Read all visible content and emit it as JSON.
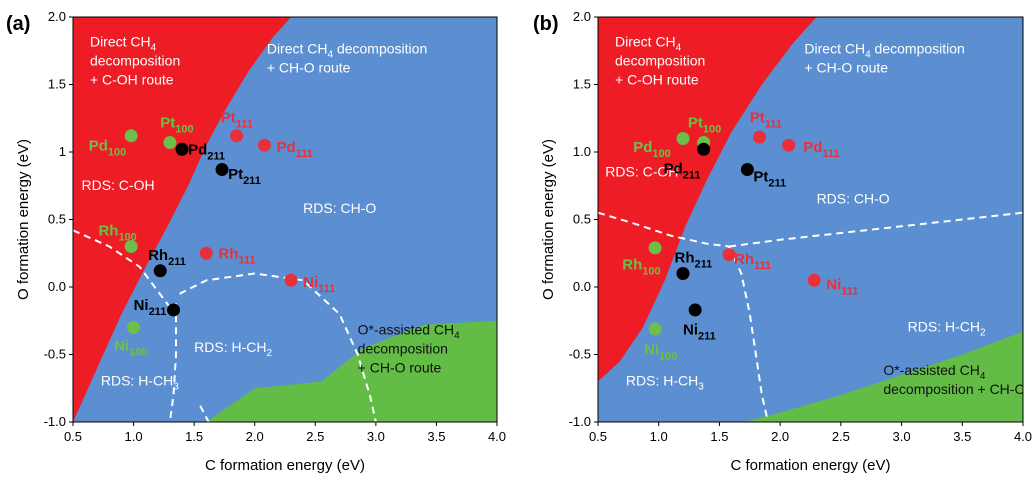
{
  "colors": {
    "blue": "#5B8FD1",
    "red": "#EE1C24",
    "green": "#62BC45",
    "dash": "#ffffff",
    "pt_black": "#000000",
    "pt_red": "#E8303A",
    "pt_green": "#6CBF4A",
    "lbl_green": "#6CBF4A",
    "lbl_red": "#E8303A",
    "lbl_black": "#000000"
  },
  "chart_data": [
    {
      "type": "scatter",
      "panel": "(a)",
      "xlabel": "C formation energy (eV)",
      "ylabel": "O formation energy (eV)",
      "xlim": [
        0.5,
        4.0
      ],
      "ylim": [
        -1.0,
        2.0
      ],
      "xticks": [
        "0.5",
        "1.0",
        "1.5",
        "2.0",
        "2.5",
        "3.0",
        "3.5",
        "4.0"
      ],
      "yticks": [
        "-1.0",
        "-0.5",
        "0.0",
        "0.5",
        "1",
        "1.5",
        "2.0"
      ],
      "regions": [
        {
          "name": "red",
          "color": "red",
          "points": [
            [
              0.5,
              -1.0
            ],
            [
              0.5,
              2.0
            ],
            [
              2.3,
              2.0
            ],
            [
              2.15,
              1.85
            ],
            [
              1.95,
              1.6
            ],
            [
              1.75,
              1.3
            ],
            [
              1.6,
              1.05
            ],
            [
              1.45,
              0.75
            ],
            [
              1.28,
              0.45
            ],
            [
              1.1,
              0.15
            ],
            [
              0.9,
              -0.2
            ],
            [
              0.7,
              -0.6
            ],
            [
              0.5,
              -1.0
            ]
          ]
        },
        {
          "name": "green",
          "color": "green",
          "points": [
            [
              1.6,
              -1.0
            ],
            [
              4.0,
              -1.0
            ],
            [
              4.0,
              -0.25
            ],
            [
              3.4,
              -0.28
            ],
            [
              2.9,
              -0.45
            ],
            [
              2.55,
              -0.7
            ],
            [
              2.0,
              -0.75
            ],
            [
              1.6,
              -1.0
            ]
          ]
        }
      ],
      "boundaries": [
        [
          [
            0.5,
            0.42
          ],
          [
            0.8,
            0.3
          ],
          [
            1.05,
            0.15
          ],
          [
            1.3,
            -0.15
          ]
        ],
        [
          [
            1.35,
            -0.12
          ],
          [
            1.35,
            -0.5
          ],
          [
            1.33,
            -0.8
          ],
          [
            1.3,
            -1.0
          ]
        ],
        [
          [
            1.38,
            -0.05
          ],
          [
            1.6,
            0.05
          ],
          [
            2.0,
            0.1
          ],
          [
            2.4,
            0.05
          ],
          [
            2.7,
            -0.2
          ],
          [
            2.85,
            -0.5
          ],
          [
            2.95,
            -0.8
          ],
          [
            3.0,
            -1.0
          ]
        ],
        [
          [
            1.55,
            -0.88
          ],
          [
            1.62,
            -1.0
          ]
        ]
      ],
      "region_labels": [
        {
          "lines": [
            [
              "Direct CH",
              "4",
              ""
            ],
            [
              "decomposition",
              "",
              ""
            ],
            [
              "+ C-OH route",
              "",
              ""
            ]
          ],
          "x": 0.64,
          "y": 1.78,
          "color": "white"
        },
        {
          "lines": [
            [
              "Direct CH",
              "4",
              " decomposition"
            ],
            [
              "+ CH-O route",
              "",
              ""
            ]
          ],
          "x": 2.1,
          "y": 1.73,
          "color": "white"
        },
        {
          "lines": [
            [
              "RDS: C-OH",
              "",
              ""
            ]
          ],
          "x": 0.57,
          "y": 0.72,
          "color": "white"
        },
        {
          "lines": [
            [
              "RDS: CH-O",
              "",
              ""
            ]
          ],
          "x": 2.4,
          "y": 0.55,
          "color": "white"
        },
        {
          "lines": [
            [
              "RDS: H-CH",
              "2",
              ""
            ]
          ],
          "x": 1.5,
          "y": -0.48,
          "color": "white"
        },
        {
          "lines": [
            [
              "RDS: H-CH",
              "3",
              ""
            ]
          ],
          "x": 0.73,
          "y": -0.73,
          "color": "white"
        },
        {
          "lines": [
            [
              "O*-assisted CH",
              "4",
              ""
            ],
            [
              "decomposition",
              "",
              ""
            ],
            [
              "+ CH-O route",
              "",
              ""
            ]
          ],
          "x": 2.85,
          "y": -0.35,
          "color": "dark"
        }
      ],
      "points": [
        {
          "label": "Pd",
          "sub": "100",
          "color": "green",
          "x": 0.98,
          "y": 1.12,
          "lx": 0.63,
          "ly": 1.01
        },
        {
          "label": "Pt",
          "sub": "100",
          "color": "green",
          "x": 1.3,
          "y": 1.07,
          "lx": 1.22,
          "ly": 1.18
        },
        {
          "label": "Pd",
          "sub": "211",
          "color": "black",
          "x": 1.4,
          "y": 1.02,
          "lx": 1.45,
          "ly": 0.98
        },
        {
          "label": "Pt",
          "sub": "211",
          "color": "black",
          "x": 1.73,
          "y": 0.87,
          "lx": 1.78,
          "ly": 0.8
        },
        {
          "label": "Pt",
          "sub": "111",
          "color": "red",
          "x": 1.85,
          "y": 1.12,
          "lx": 1.72,
          "ly": 1.22
        },
        {
          "label": "Pd",
          "sub": "111",
          "color": "red",
          "x": 2.08,
          "y": 1.05,
          "lx": 2.18,
          "ly": 1.0
        },
        {
          "label": "Rh",
          "sub": "100",
          "color": "green",
          "x": 0.98,
          "y": 0.3,
          "lx": 0.71,
          "ly": 0.38
        },
        {
          "label": "Rh",
          "sub": "211",
          "color": "black",
          "x": 1.22,
          "y": 0.12,
          "lx": 1.12,
          "ly": 0.2
        },
        {
          "label": "Rh",
          "sub": "111",
          "color": "red",
          "x": 1.6,
          "y": 0.25,
          "lx": 1.7,
          "ly": 0.21
        },
        {
          "label": "Ni",
          "sub": "111",
          "color": "red",
          "x": 2.3,
          "y": 0.05,
          "lx": 2.4,
          "ly": 0.0
        },
        {
          "label": "Ni",
          "sub": "211",
          "color": "black",
          "x": 1.33,
          "y": -0.17,
          "lx": 1.0,
          "ly": -0.17
        },
        {
          "label": "Ni",
          "sub": "100",
          "color": "green",
          "x": 1.0,
          "y": -0.3,
          "lx": 0.84,
          "ly": -0.47
        }
      ]
    },
    {
      "type": "scatter",
      "panel": "(b)",
      "xlabel": "C formation energy (eV)",
      "ylabel": "O formation energy (eV)",
      "xlim": [
        0.5,
        4.0
      ],
      "ylim": [
        -1.0,
        2.0
      ],
      "xticks": [
        "0.5",
        "1.0",
        "1.5",
        "2.0",
        "2.5",
        "3.0",
        "3.5",
        "4.0"
      ],
      "yticks": [
        "-1.0",
        "-0.5",
        "0.0",
        "0.5",
        "1.0",
        "1.5",
        "2.0"
      ],
      "regions": [
        {
          "name": "red",
          "color": "red",
          "points": [
            [
              0.5,
              -0.7
            ],
            [
              0.5,
              2.0
            ],
            [
              2.3,
              2.0
            ],
            [
              2.1,
              1.8
            ],
            [
              1.85,
              1.5
            ],
            [
              1.6,
              1.15
            ],
            [
              1.4,
              0.8
            ],
            [
              1.22,
              0.45
            ],
            [
              1.05,
              0.05
            ],
            [
              0.87,
              -0.3
            ],
            [
              0.68,
              -0.55
            ],
            [
              0.5,
              -0.7
            ]
          ]
        },
        {
          "name": "green",
          "color": "green",
          "points": [
            [
              1.7,
              -1.0
            ],
            [
              4.0,
              -1.0
            ],
            [
              4.0,
              -0.33
            ],
            [
              3.5,
              -0.5
            ],
            [
              3.0,
              -0.65
            ],
            [
              2.5,
              -0.8
            ],
            [
              2.0,
              -0.93
            ],
            [
              1.7,
              -1.0
            ]
          ]
        }
      ],
      "boundaries": [
        [
          [
            0.5,
            0.55
          ],
          [
            0.8,
            0.47
          ],
          [
            1.1,
            0.38
          ],
          [
            1.4,
            0.32
          ],
          [
            1.58,
            0.3
          ]
        ],
        [
          [
            1.58,
            0.3
          ],
          [
            2.0,
            0.35
          ],
          [
            2.5,
            0.4
          ],
          [
            3.0,
            0.45
          ],
          [
            3.5,
            0.5
          ],
          [
            4.0,
            0.55
          ]
        ],
        [
          [
            1.58,
            0.3
          ],
          [
            1.68,
            0.1
          ],
          [
            1.75,
            -0.2
          ],
          [
            1.8,
            -0.5
          ],
          [
            1.85,
            -0.8
          ],
          [
            1.9,
            -1.0
          ]
        ]
      ],
      "region_labels": [
        {
          "lines": [
            [
              "Direct CH",
              "4",
              ""
            ],
            [
              "decomposition",
              "",
              ""
            ],
            [
              "+ C-OH route",
              "",
              ""
            ]
          ],
          "x": 0.64,
          "y": 1.78,
          "color": "white"
        },
        {
          "lines": [
            [
              "Direct CH",
              "4",
              " decomposition"
            ],
            [
              "+ CH-O route",
              "",
              ""
            ]
          ],
          "x": 2.2,
          "y": 1.73,
          "color": "white"
        },
        {
          "lines": [
            [
              "RDS: C-OH",
              "",
              ""
            ]
          ],
          "x": 0.56,
          "y": 0.82,
          "color": "white"
        },
        {
          "lines": [
            [
              "RDS: CH-O",
              "",
              ""
            ]
          ],
          "x": 2.3,
          "y": 0.62,
          "color": "white"
        },
        {
          "lines": [
            [
              "RDS: H-CH",
              "2",
              ""
            ]
          ],
          "x": 3.05,
          "y": -0.33,
          "color": "white"
        },
        {
          "lines": [
            [
              "RDS: H-CH",
              "3",
              ""
            ]
          ],
          "x": 0.73,
          "y": -0.73,
          "color": "white"
        },
        {
          "lines": [
            [
              "O*-assisted CH",
              "4",
              ""
            ],
            [
              "decomposition + CH-O route",
              "",
              ""
            ]
          ],
          "x": 2.85,
          "y": -0.65,
          "color": "dark"
        }
      ],
      "points": [
        {
          "label": "Pd",
          "sub": "100",
          "color": "green",
          "x": 1.2,
          "y": 1.1,
          "lx": 0.79,
          "ly": 1.0
        },
        {
          "label": "Pt",
          "sub": "100",
          "color": "green",
          "x": 1.37,
          "y": 1.07,
          "lx": 1.24,
          "ly": 1.18
        },
        {
          "label": "Pd",
          "sub": "211",
          "color": "black",
          "x": 1.37,
          "y": 1.02,
          "lx": 1.04,
          "ly": 0.84
        },
        {
          "label": "Pt",
          "sub": "211",
          "color": "black",
          "x": 1.73,
          "y": 0.87,
          "lx": 1.78,
          "ly": 0.78
        },
        {
          "label": "Pt",
          "sub": "111",
          "color": "red",
          "x": 1.83,
          "y": 1.11,
          "lx": 1.75,
          "ly": 1.22
        },
        {
          "label": "Pd",
          "sub": "111",
          "color": "red",
          "x": 2.07,
          "y": 1.05,
          "lx": 2.19,
          "ly": 1.0
        },
        {
          "label": "Rh",
          "sub": "100",
          "color": "green",
          "x": 0.97,
          "y": 0.29,
          "lx": 0.7,
          "ly": 0.13
        },
        {
          "label": "Rh",
          "sub": "211",
          "color": "black",
          "x": 1.2,
          "y": 0.1,
          "lx": 1.13,
          "ly": 0.18
        },
        {
          "label": "Rh",
          "sub": "111",
          "color": "red",
          "x": 1.58,
          "y": 0.24,
          "lx": 1.62,
          "ly": 0.17
        },
        {
          "label": "Ni",
          "sub": "111",
          "color": "red",
          "x": 2.28,
          "y": 0.05,
          "lx": 2.38,
          "ly": -0.02
        },
        {
          "label": "Ni",
          "sub": "211",
          "color": "black",
          "x": 1.3,
          "y": -0.17,
          "lx": 1.2,
          "ly": -0.35
        },
        {
          "label": "Ni",
          "sub": "100",
          "color": "green",
          "x": 0.97,
          "y": -0.31,
          "lx": 0.88,
          "ly": -0.5
        }
      ]
    }
  ]
}
